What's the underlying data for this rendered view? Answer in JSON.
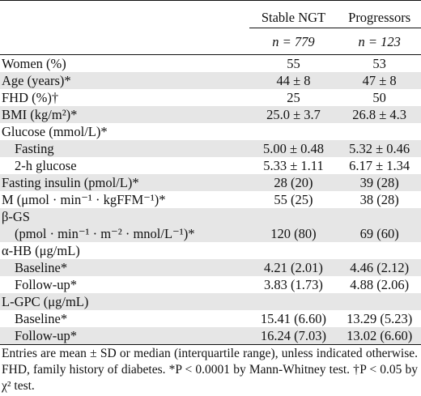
{
  "header": {
    "col_stable": "Stable NGT",
    "col_progressors": "Progressors",
    "n_stable": "n = 779",
    "n_progressors": "n = 123"
  },
  "rows": [
    {
      "label": "Women (%)",
      "stable": "55",
      "prog": "53"
    },
    {
      "label": "Age (years)*",
      "stable": "44 ± 8",
      "prog": "47 ± 8"
    },
    {
      "label": "FHD (%)†",
      "stable": "25",
      "prog": "50"
    },
    {
      "label": "BMI (kg/m²)*",
      "stable": "25.0 ± 3.7",
      "prog": "26.8 ± 4.3"
    },
    {
      "label": "Glucose (mmol/L)*",
      "stable": "",
      "prog": ""
    },
    {
      "label": "Fasting",
      "stable": "5.00 ± 0.48",
      "prog": "5.32 ± 0.46"
    },
    {
      "label": "2-h glucose",
      "stable": "5.33 ± 1.11",
      "prog": "6.17 ± 1.34"
    },
    {
      "label": "Fasting insulin (pmol/L)*",
      "stable": "28 (20)",
      "prog": "39 (28)"
    },
    {
      "label": "M (μmol · min⁻¹ · kgFFM⁻¹)*",
      "stable": "55 (25)",
      "prog": "38 (28)"
    },
    {
      "label": "β-GS",
      "stable": "",
      "prog": ""
    },
    {
      "label": "(pmol · min⁻¹ · m⁻² · mnol/L⁻¹)*",
      "stable": "120 (80)",
      "prog": "69 (60)"
    },
    {
      "label": "α-HB (μg/mL)",
      "stable": "",
      "prog": ""
    },
    {
      "label": "Baseline*",
      "stable": "4.21 (2.01)",
      "prog": "4.46 (2.12)"
    },
    {
      "label": "Follow-up*",
      "stable": "3.83 (1.73)",
      "prog": "4.88 (2.06)"
    },
    {
      "label": "L-GPC (μg/mL)",
      "stable": "",
      "prog": ""
    },
    {
      "label": "Baseline*",
      "stable": "15.41 (6.60)",
      "prog": "13.29 (5.23)"
    },
    {
      "label": "Follow-up*",
      "stable": "16.24 (7.03)",
      "prog": "13.02 (6.60)"
    }
  ],
  "footnote": "Entries are mean ± SD or median (interquartile range), unless indicated otherwise. FHD, family history of diabetes. *P < 0.0001 by Mann-Whitney test. †P < 0.05 by χ² test."
}
